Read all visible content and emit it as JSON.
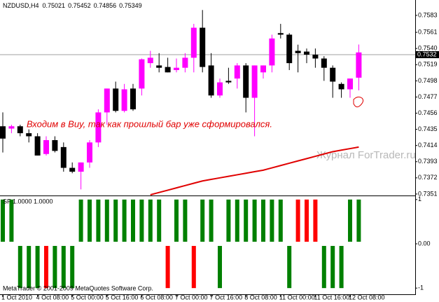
{
  "chart_data": [
    {
      "type": "candlestick",
      "title": "NZDUSD,H4",
      "categories": [
        "1 Oct 2010",
        null,
        null,
        null,
        "4 Oct 08:00",
        null,
        null,
        null,
        "5 Oct 00:00",
        null,
        null,
        null,
        "5 Oct 16:00",
        null,
        null,
        null,
        "6 Oct 08:00",
        null,
        null,
        null,
        "7 Oct 00:00",
        null,
        null,
        null,
        "7 Oct 16:00",
        null,
        null,
        null,
        "8 Oct 08:00",
        null,
        null,
        null,
        "11 Oct 00:00",
        null,
        null,
        null,
        "11 Oct 16:00",
        null,
        null,
        null,
        "12 Oct 08:00",
        null
      ],
      "open": [
        0.7439,
        0.7436,
        0.7439,
        0.743,
        0.7426,
        0.7403,
        0.7421,
        0.7412,
        0.7385,
        0.738,
        0.7392,
        0.7418,
        0.7457,
        0.7488,
        0.7459,
        0.7488,
        0.7488,
        0.7521,
        0.7518,
        0.7516,
        0.7512,
        0.7515,
        0.7528,
        0.7567,
        0.7518,
        0.7479,
        0.7498,
        0.7501,
        0.7518,
        0.7476,
        0.7509,
        0.7518,
        0.756,
        0.7558,
        0.7537,
        0.7536,
        0.7532,
        0.7527,
        0.7515,
        0.7494,
        0.7487,
        0.75021
      ],
      "high": [
        0.7457,
        0.7441,
        0.7441,
        0.7435,
        0.743,
        0.7426,
        0.7426,
        0.7418,
        0.7392,
        0.7392,
        0.7421,
        0.7461,
        0.7488,
        0.7497,
        0.7494,
        0.7494,
        0.7527,
        0.7537,
        0.7534,
        0.7528,
        0.7527,
        0.7534,
        0.7572,
        0.759,
        0.7534,
        0.7501,
        0.7515,
        0.7521,
        0.7521,
        0.7518,
        0.7518,
        0.7558,
        0.7572,
        0.756,
        0.7545,
        0.754,
        0.754,
        0.753,
        0.7518,
        0.7496,
        0.7501,
        0.75452
      ],
      "low": [
        0.7405,
        0.743,
        0.7426,
        0.7418,
        0.7401,
        0.7401,
        0.7405,
        0.738,
        0.7378,
        0.7357,
        0.7385,
        0.7412,
        0.7441,
        0.7457,
        0.7457,
        0.7459,
        0.7479,
        0.7515,
        0.7509,
        0.7509,
        0.7509,
        0.7509,
        0.7509,
        0.7509,
        0.7476,
        0.7476,
        0.7494,
        0.7488,
        0.7457,
        0.7426,
        0.7501,
        0.7509,
        0.7553,
        0.7512,
        0.7509,
        0.7521,
        0.7515,
        0.7498,
        0.7476,
        0.7476,
        0.7476,
        0.74856
      ],
      "close": [
        0.7423,
        0.7439,
        0.743,
        0.7426,
        0.7401,
        0.7421,
        0.7407,
        0.7385,
        0.738,
        0.7392,
        0.7418,
        0.7457,
        0.7488,
        0.7459,
        0.7487,
        0.7461,
        0.7526,
        0.7528,
        0.7515,
        0.7509,
        0.7515,
        0.7528,
        0.7567,
        0.7516,
        0.7479,
        0.7496,
        0.7496,
        0.7518,
        0.7476,
        0.7518,
        0.7518,
        0.7553,
        0.7558,
        0.7521,
        0.7534,
        0.7532,
        0.7527,
        0.7515,
        0.7497,
        0.7487,
        0.7501,
        0.75349
      ],
      "up_color": "#ff00ff",
      "down_color": "#000000",
      "line": {
        "color": "#e00000",
        "values": [
          null,
          null,
          null,
          null,
          null,
          null,
          null,
          null,
          null,
          null,
          null,
          null,
          null,
          null,
          null,
          null,
          null,
          0.735,
          0.7353,
          0.7356,
          0.7359,
          0.7362,
          0.7365,
          0.7368,
          0.737,
          0.7372,
          0.7374,
          0.7376,
          0.7378,
          0.738,
          0.7382,
          0.7385,
          0.7388,
          0.7391,
          0.7394,
          0.7397,
          0.74,
          0.7403,
          0.7406,
          0.7408,
          0.741,
          0.7412
        ]
      },
      "ylim": [
        0.735,
        0.7603
      ],
      "yticks": [
        0.7583,
        0.7561,
        {
          "value": 0.754,
          "label": "0.7540"
        },
        0.7519,
        0.7498,
        0.7477,
        0.7456,
        0.7435,
        0.7414,
        0.7393,
        0.7372,
        0.7351
      ],
      "current_price": 0.7532,
      "annotation": "Входим в Buy, так как прошлый бар уже сформировался.",
      "watermark": "Журнал ForTrader.ru"
    },
    {
      "type": "bar",
      "title": "SF 1.0000 1.0000",
      "values": [
        1,
        1,
        -1,
        -1,
        -1,
        -1,
        -1,
        -1,
        -1,
        1,
        1,
        1,
        1,
        1,
        1,
        1,
        1,
        1,
        1,
        -1,
        1,
        1,
        -1,
        1,
        1,
        -1,
        1,
        1,
        1,
        1,
        1,
        1,
        1,
        -1,
        1,
        1,
        1,
        -1,
        -1,
        -1,
        1,
        1
      ],
      "colors": [
        "#008000",
        "#008000",
        "#008000",
        "#008000",
        "#008000",
        "#ff0000",
        "#008000",
        "#008000",
        "#008000",
        "#008000",
        "#008000",
        "#008000",
        "#008000",
        "#008000",
        "#008000",
        "#008000",
        "#008000",
        "#008000",
        "#008000",
        "#ff0000",
        "#008000",
        "#008000",
        "#ff0000",
        "#008000",
        "#008000",
        "#008000",
        "#008000",
        "#008000",
        "#008000",
        "#008000",
        "#008000",
        "#008000",
        "#008000",
        "#008000",
        "#ff0000",
        "#ff0000",
        "#ff0000",
        "#008000",
        "#008000",
        "#008000",
        "#008000",
        "#008000"
      ],
      "ylim": [
        -1.14,
        1.06
      ],
      "yticks": [
        1,
        {
          "value": 0,
          "label": "0.00"
        },
        -1
      ],
      "footnote": "MetaTrader © 2001-2009 MetaQuotes Software Corp."
    }
  ]
}
